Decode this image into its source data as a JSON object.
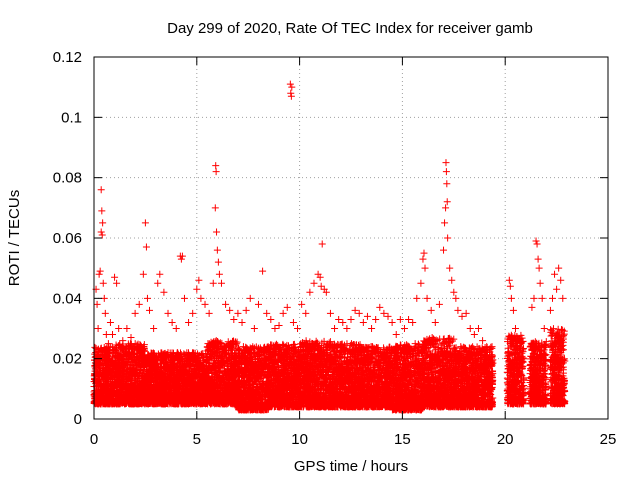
{
  "chart_data": {
    "type": "scatter",
    "title": "Day 299 of 2020, Rate Of TEC Index for receiver gamb",
    "xlabel": "GPS time / hours",
    "ylabel": "ROTI / TECUs",
    "xlim": [
      0,
      25
    ],
    "ylim": [
      0,
      0.12
    ],
    "xticks": [
      "0",
      "5",
      "10",
      "15",
      "20",
      "25"
    ],
    "yticks": [
      "0",
      "0.02",
      "0.04",
      "0.06",
      "0.08",
      "0.1",
      "0.12"
    ],
    "grid": true,
    "marker": "+",
    "color": "#ff0000",
    "series": [
      {
        "name": "ROTI",
        "points": [
          [
            0.1,
            0.043
          ],
          [
            0.15,
            0.038
          ],
          [
            0.2,
            0.03
          ],
          [
            0.25,
            0.048
          ],
          [
            0.3,
            0.049
          ],
          [
            0.35,
            0.062
          ],
          [
            0.35,
            0.076
          ],
          [
            0.38,
            0.069
          ],
          [
            0.4,
            0.061
          ],
          [
            0.42,
            0.065
          ],
          [
            0.45,
            0.045
          ],
          [
            0.5,
            0.04
          ],
          [
            0.55,
            0.035
          ],
          [
            0.6,
            0.028
          ],
          [
            0.7,
            0.025
          ],
          [
            0.8,
            0.032
          ],
          [
            0.9,
            0.028
          ],
          [
            1.0,
            0.047
          ],
          [
            1.1,
            0.045
          ],
          [
            1.2,
            0.03
          ],
          [
            1.4,
            0.026
          ],
          [
            1.6,
            0.03
          ],
          [
            1.8,
            0.027
          ],
          [
            2.0,
            0.035
          ],
          [
            2.2,
            0.038
          ],
          [
            2.4,
            0.048
          ],
          [
            2.5,
            0.065
          ],
          [
            2.55,
            0.057
          ],
          [
            2.6,
            0.04
          ],
          [
            2.7,
            0.036
          ],
          [
            2.9,
            0.03
          ],
          [
            3.1,
            0.045
          ],
          [
            3.2,
            0.048
          ],
          [
            3.4,
            0.042
          ],
          [
            3.6,
            0.035
          ],
          [
            3.8,
            0.032
          ],
          [
            4.0,
            0.03
          ],
          [
            4.2,
            0.054
          ],
          [
            4.25,
            0.053
          ],
          [
            4.3,
            0.054
          ],
          [
            4.4,
            0.04
          ],
          [
            4.6,
            0.032
          ],
          [
            4.8,
            0.035
          ],
          [
            5.0,
            0.043
          ],
          [
            5.1,
            0.046
          ],
          [
            5.2,
            0.04
          ],
          [
            5.4,
            0.038
          ],
          [
            5.6,
            0.035
          ],
          [
            5.8,
            0.045
          ],
          [
            5.9,
            0.07
          ],
          [
            5.92,
            0.084
          ],
          [
            5.94,
            0.082
          ],
          [
            5.96,
            0.062
          ],
          [
            6.0,
            0.056
          ],
          [
            6.05,
            0.052
          ],
          [
            6.1,
            0.048
          ],
          [
            6.2,
            0.045
          ],
          [
            6.4,
            0.038
          ],
          [
            6.6,
            0.036
          ],
          [
            6.8,
            0.033
          ],
          [
            7.0,
            0.035
          ],
          [
            7.2,
            0.032
          ],
          [
            7.4,
            0.036
          ],
          [
            7.6,
            0.04
          ],
          [
            7.8,
            0.03
          ],
          [
            8.0,
            0.038
          ],
          [
            8.2,
            0.049
          ],
          [
            8.4,
            0.035
          ],
          [
            8.6,
            0.033
          ],
          [
            8.8,
            0.03
          ],
          [
            9.0,
            0.031
          ],
          [
            9.2,
            0.035
          ],
          [
            9.4,
            0.037
          ],
          [
            9.55,
            0.111
          ],
          [
            9.57,
            0.108
          ],
          [
            9.6,
            0.107
          ],
          [
            9.62,
            0.11
          ],
          [
            9.7,
            0.032
          ],
          [
            9.9,
            0.03
          ],
          [
            10.1,
            0.038
          ],
          [
            10.3,
            0.035
          ],
          [
            10.5,
            0.042
          ],
          [
            10.7,
            0.045
          ],
          [
            10.9,
            0.048
          ],
          [
            11.0,
            0.047
          ],
          [
            11.05,
            0.044
          ],
          [
            11.1,
            0.058
          ],
          [
            11.2,
            0.043
          ],
          [
            11.3,
            0.042
          ],
          [
            11.5,
            0.035
          ],
          [
            11.7,
            0.03
          ],
          [
            11.9,
            0.033
          ],
          [
            12.1,
            0.032
          ],
          [
            12.3,
            0.03
          ],
          [
            12.5,
            0.033
          ],
          [
            12.7,
            0.036
          ],
          [
            12.9,
            0.035
          ],
          [
            13.1,
            0.032
          ],
          [
            13.3,
            0.034
          ],
          [
            13.5,
            0.03
          ],
          [
            13.7,
            0.033
          ],
          [
            13.9,
            0.037
          ],
          [
            14.1,
            0.035
          ],
          [
            14.3,
            0.034
          ],
          [
            14.5,
            0.032
          ],
          [
            14.7,
            0.028
          ],
          [
            14.9,
            0.033
          ],
          [
            15.1,
            0.03
          ],
          [
            15.3,
            0.033
          ],
          [
            15.5,
            0.032
          ],
          [
            15.7,
            0.04
          ],
          [
            15.9,
            0.045
          ],
          [
            16.0,
            0.053
          ],
          [
            16.05,
            0.055
          ],
          [
            16.1,
            0.05
          ],
          [
            16.2,
            0.04
          ],
          [
            16.4,
            0.036
          ],
          [
            16.6,
            0.032
          ],
          [
            16.8,
            0.038
          ],
          [
            17.0,
            0.056
          ],
          [
            17.05,
            0.065
          ],
          [
            17.1,
            0.07
          ],
          [
            17.12,
            0.085
          ],
          [
            17.14,
            0.082
          ],
          [
            17.16,
            0.078
          ],
          [
            17.18,
            0.072
          ],
          [
            17.2,
            0.06
          ],
          [
            17.3,
            0.05
          ],
          [
            17.4,
            0.046
          ],
          [
            17.5,
            0.042
          ],
          [
            17.6,
            0.04
          ],
          [
            17.7,
            0.036
          ],
          [
            17.9,
            0.034
          ],
          [
            18.1,
            0.035
          ],
          [
            18.3,
            0.03
          ],
          [
            18.5,
            0.028
          ],
          [
            18.7,
            0.03
          ],
          [
            18.9,
            0.026
          ],
          [
            19.1,
            0.024
          ],
          [
            19.3,
            0.018
          ],
          [
            20.2,
            0.046
          ],
          [
            20.25,
            0.044
          ],
          [
            20.3,
            0.04
          ],
          [
            20.4,
            0.036
          ],
          [
            20.5,
            0.03
          ],
          [
            20.6,
            0.026
          ],
          [
            21.3,
            0.037
          ],
          [
            21.4,
            0.04
          ],
          [
            21.5,
            0.059
          ],
          [
            21.55,
            0.058
          ],
          [
            21.6,
            0.053
          ],
          [
            21.65,
            0.05
          ],
          [
            21.7,
            0.045
          ],
          [
            21.8,
            0.04
          ],
          [
            21.9,
            0.03
          ],
          [
            22.2,
            0.036
          ],
          [
            22.3,
            0.04
          ],
          [
            22.4,
            0.048
          ],
          [
            22.5,
            0.043
          ],
          [
            22.6,
            0.05
          ],
          [
            22.7,
            0.046
          ],
          [
            22.8,
            0.04
          ]
        ],
        "bands": [
          [
            0.0,
            1.0,
            0.005,
            0.024
          ],
          [
            1.0,
            2.5,
            0.005,
            0.025
          ],
          [
            2.5,
            4.0,
            0.005,
            0.022
          ],
          [
            4.0,
            5.5,
            0.005,
            0.022
          ],
          [
            5.5,
            7.0,
            0.005,
            0.026
          ],
          [
            7.0,
            8.5,
            0.003,
            0.024
          ],
          [
            8.5,
            10.0,
            0.004,
            0.025
          ],
          [
            10.0,
            11.5,
            0.004,
            0.026
          ],
          [
            11.5,
            13.0,
            0.004,
            0.025
          ],
          [
            13.0,
            14.5,
            0.004,
            0.024
          ],
          [
            14.5,
            16.0,
            0.003,
            0.025
          ],
          [
            16.0,
            17.5,
            0.004,
            0.027
          ],
          [
            17.5,
            19.4,
            0.004,
            0.024
          ],
          [
            20.1,
            20.9,
            0.005,
            0.028
          ],
          [
            21.2,
            22.0,
            0.005,
            0.026
          ],
          [
            22.2,
            22.9,
            0.005,
            0.03
          ]
        ]
      }
    ]
  }
}
